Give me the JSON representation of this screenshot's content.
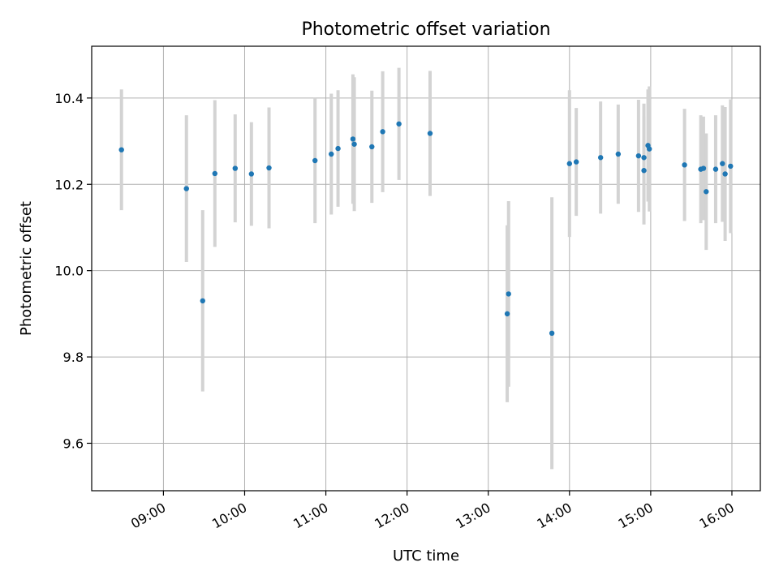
{
  "chart_data": {
    "type": "scatter",
    "title": "Photometric offset variation",
    "xlabel": "UTC time",
    "ylabel": "Photometric offset",
    "xlim": [
      "08:07",
      "16:21"
    ],
    "ylim": [
      9.49,
      10.52
    ],
    "grid": true,
    "xticks": [
      "09:00",
      "10:00",
      "11:00",
      "12:00",
      "13:00",
      "14:00",
      "15:00",
      "16:00"
    ],
    "yticks": [
      9.6,
      9.8,
      10.0,
      10.2,
      10.4
    ],
    "point_color": "#1f77b4",
    "errorbar_color": "#d3d3d3",
    "points": [
      {
        "x": "08:29",
        "y": 10.28,
        "err": 0.14
      },
      {
        "x": "09:17",
        "y": 10.19,
        "err": 0.17
      },
      {
        "x": "09:29",
        "y": 9.93,
        "err": 0.21
      },
      {
        "x": "09:38",
        "y": 10.225,
        "err": 0.17
      },
      {
        "x": "09:53",
        "y": 10.237,
        "err": 0.125
      },
      {
        "x": "10:05",
        "y": 10.224,
        "err": 0.12
      },
      {
        "x": "10:18",
        "y": 10.238,
        "err": 0.14
      },
      {
        "x": "10:52",
        "y": 10.255,
        "err": 0.145
      },
      {
        "x": "11:04",
        "y": 10.27,
        "err": 0.14
      },
      {
        "x": "11:09",
        "y": 10.283,
        "err": 0.135
      },
      {
        "x": "11:20",
        "y": 10.305,
        "err": 0.15
      },
      {
        "x": "11:21",
        "y": 10.293,
        "err": 0.155
      },
      {
        "x": "11:34",
        "y": 10.287,
        "err": 0.13
      },
      {
        "x": "11:42",
        "y": 10.322,
        "err": 0.14
      },
      {
        "x": "11:54",
        "y": 10.34,
        "err": 0.13
      },
      {
        "x": "12:17",
        "y": 10.318,
        "err": 0.145
      },
      {
        "x": "13:14",
        "y": 9.9,
        "err": 0.205
      },
      {
        "x": "13:15",
        "y": 9.946,
        "err": 0.215
      },
      {
        "x": "13:47",
        "y": 9.855,
        "err": 0.315
      },
      {
        "x": "14:00",
        "y": 10.248,
        "err": 0.17
      },
      {
        "x": "14:05",
        "y": 10.252,
        "err": 0.125
      },
      {
        "x": "14:23",
        "y": 10.262,
        "err": 0.13
      },
      {
        "x": "14:36",
        "y": 10.27,
        "err": 0.115
      },
      {
        "x": "14:51",
        "y": 10.266,
        "err": 0.13
      },
      {
        "x": "14:55",
        "y": 10.262,
        "err": 0.125
      },
      {
        "x": "14:55",
        "y": 10.232,
        "err": 0.125
      },
      {
        "x": "14:58",
        "y": 10.29,
        "err": 0.13
      },
      {
        "x": "14:59",
        "y": 10.282,
        "err": 0.145
      },
      {
        "x": "15:25",
        "y": 10.245,
        "err": 0.13
      },
      {
        "x": "15:37",
        "y": 10.235,
        "err": 0.125
      },
      {
        "x": "15:39",
        "y": 10.237,
        "err": 0.12
      },
      {
        "x": "15:41",
        "y": 10.183,
        "err": 0.135
      },
      {
        "x": "15:48",
        "y": 10.235,
        "err": 0.125
      },
      {
        "x": "15:53",
        "y": 10.248,
        "err": 0.135
      },
      {
        "x": "15:55",
        "y": 10.224,
        "err": 0.155
      },
      {
        "x": "15:59",
        "y": 10.242,
        "err": 0.155
      }
    ]
  }
}
